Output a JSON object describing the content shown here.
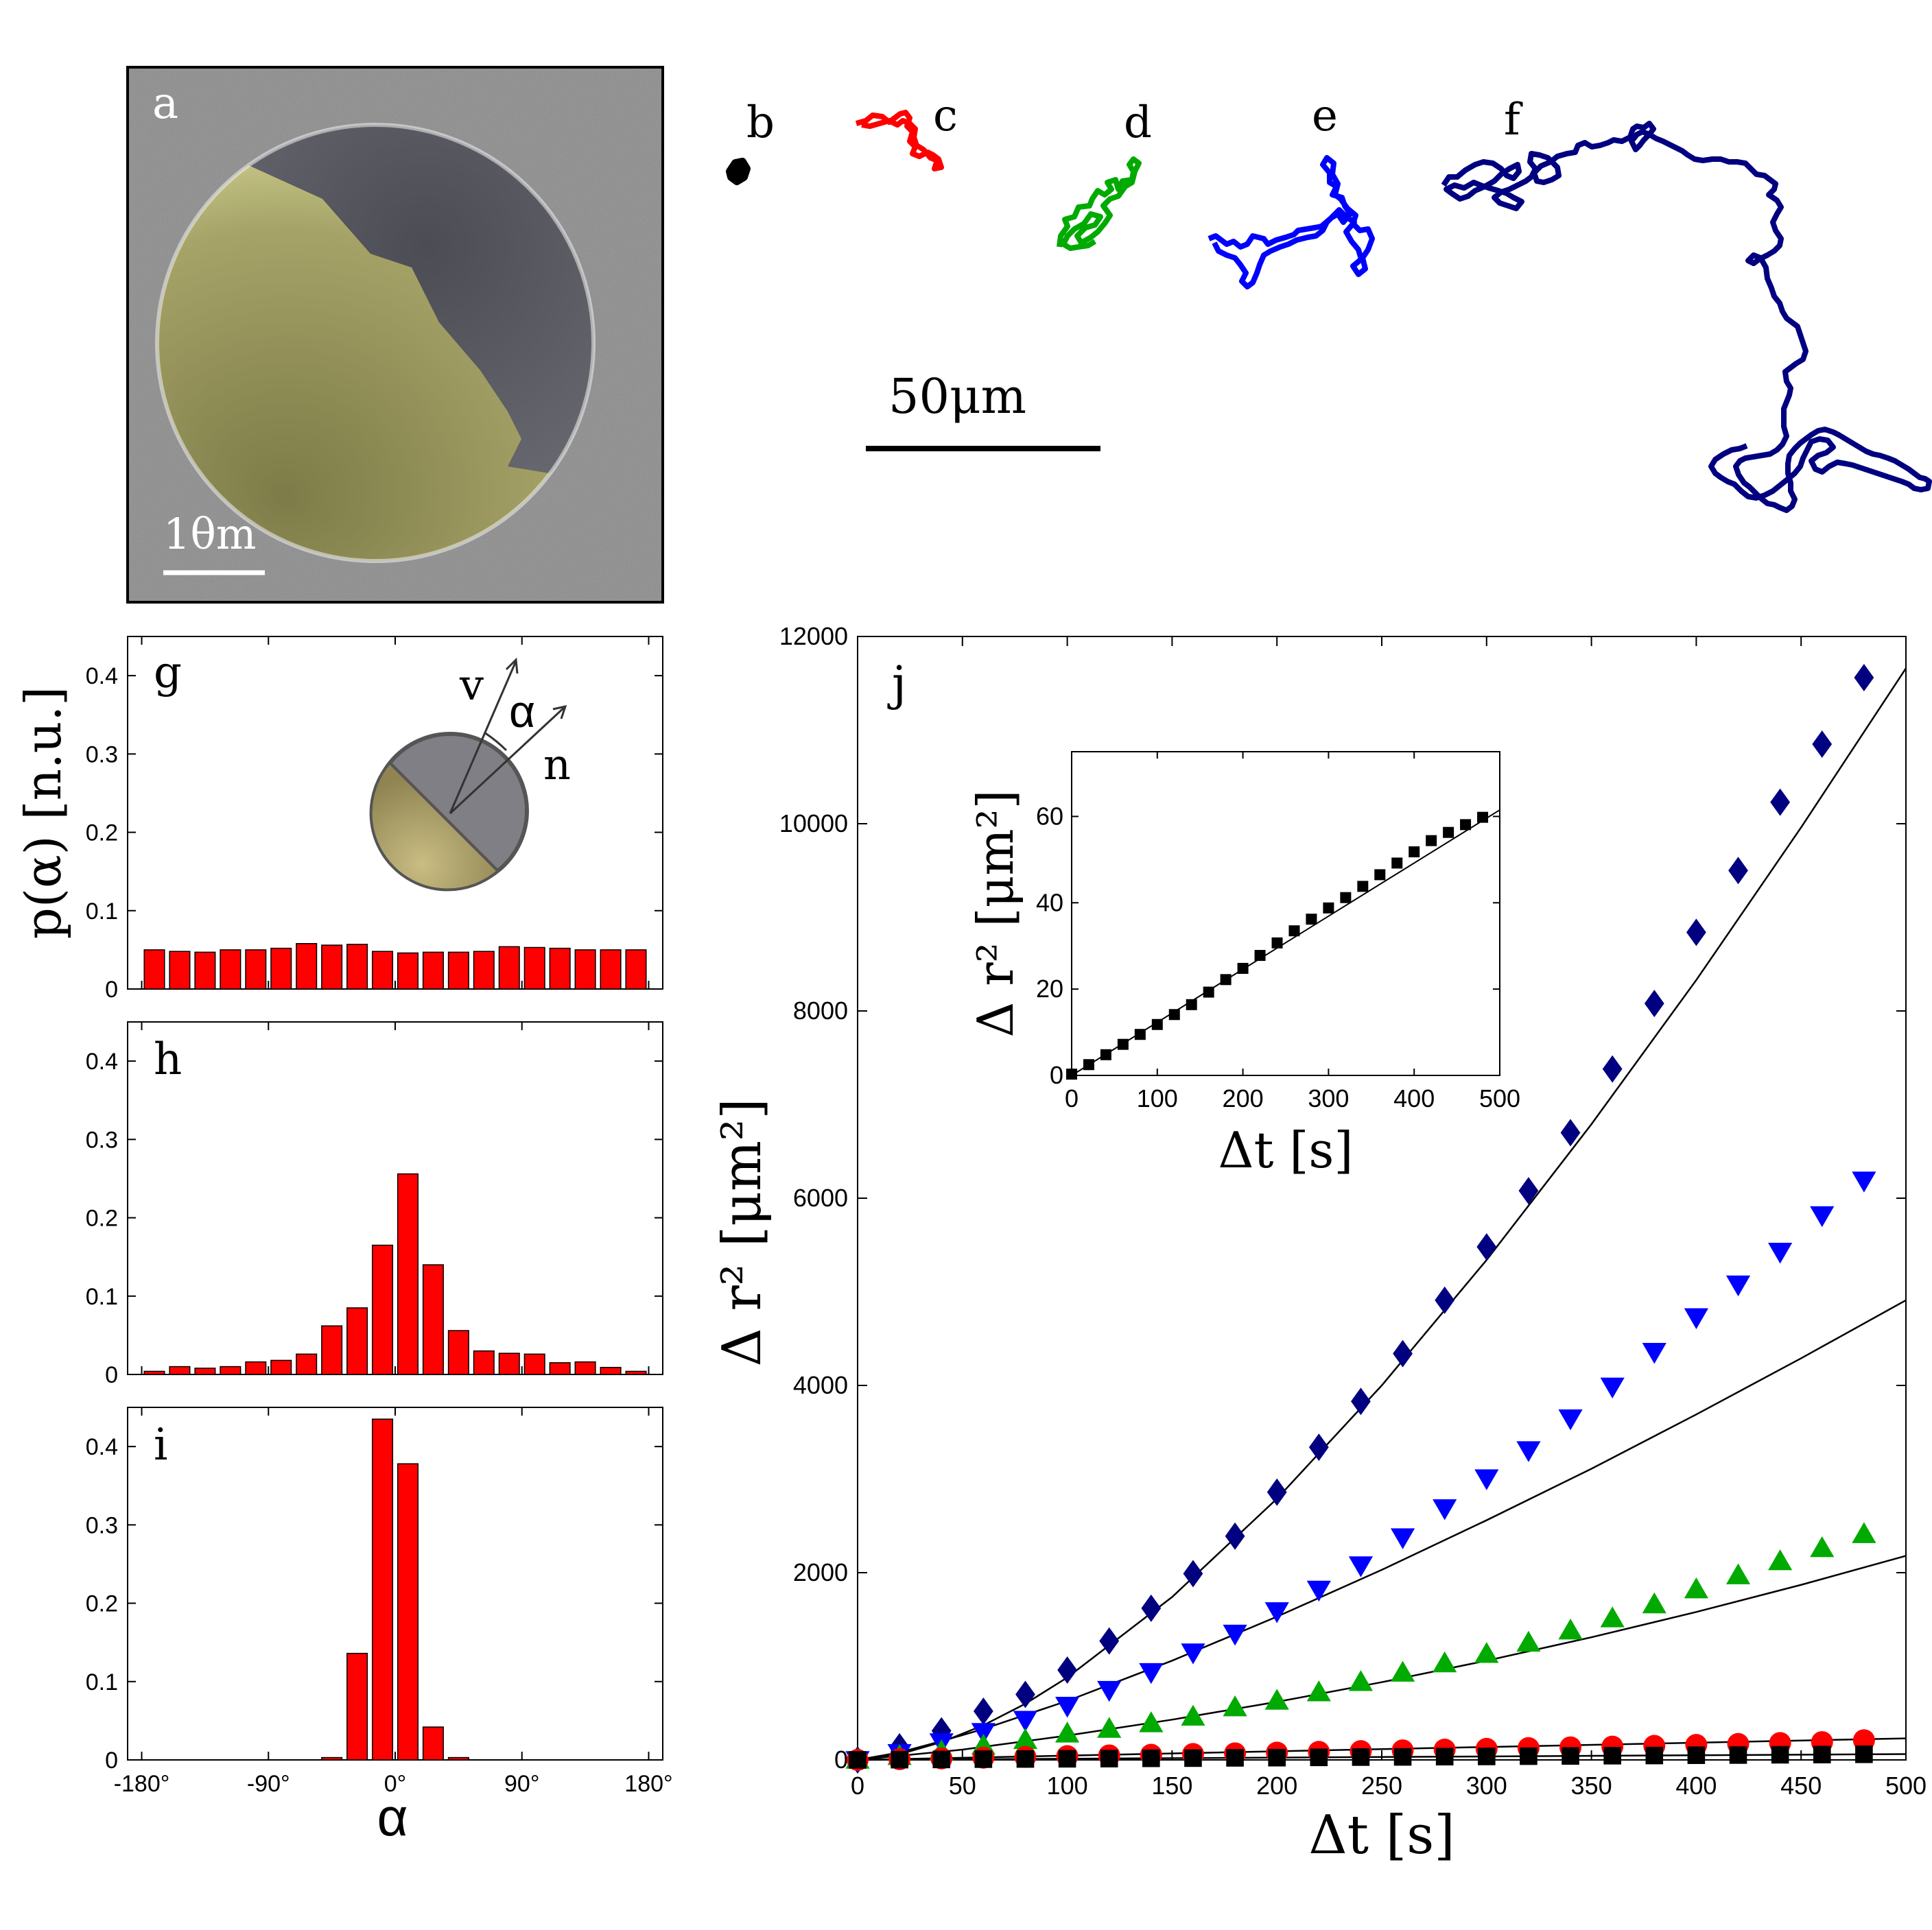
{
  "labels": {
    "a": "a",
    "b": "b",
    "c": "c",
    "d": "d",
    "e": "e",
    "f": "f",
    "g": "g",
    "h": "h",
    "i": "i",
    "j": "j"
  },
  "sem": {
    "scale_label": "1θm",
    "colors": {
      "background": "#8a8a8a",
      "cap": "#c9c98a",
      "uncoated": "#6d6d74"
    }
  },
  "trajectories": {
    "scale_label": "50μm",
    "colors": {
      "b": "#000000",
      "c": "#ff0000",
      "d": "#00aa00",
      "e": "#0000ff",
      "f": "#000080"
    }
  },
  "histograms": {
    "ylabel": "p(α) [n.u.]",
    "xlabel": "α",
    "bar_color": "#ff0000",
    "yticks": [
      "0",
      "0.1",
      "0.2",
      "0.3",
      "0.4"
    ],
    "xticks": [
      "-180°",
      "-90°",
      "0°",
      "90°",
      "180°"
    ],
    "inset": {
      "v": "v",
      "alpha": "α",
      "n": "n"
    }
  },
  "chart_data": [
    {
      "type": "bar",
      "panel": "g",
      "ylim": [
        0,
        0.45
      ],
      "xlim": [
        -190,
        190
      ],
      "bin_centers": [
        -171,
        -153,
        -135,
        -117,
        -99,
        -81,
        -63,
        -45,
        -27,
        -9,
        9,
        27,
        45,
        63,
        81,
        99,
        117,
        135,
        153,
        171
      ],
      "values": [
        0.05,
        0.048,
        0.047,
        0.05,
        0.05,
        0.052,
        0.058,
        0.056,
        0.057,
        0.048,
        0.046,
        0.047,
        0.047,
        0.048,
        0.054,
        0.053,
        0.052,
        0.05,
        0.05,
        0.05
      ]
    },
    {
      "type": "bar",
      "panel": "h",
      "ylim": [
        0,
        0.45
      ],
      "xlim": [
        -190,
        190
      ],
      "bin_centers": [
        -171,
        -153,
        -135,
        -117,
        -99,
        -81,
        -63,
        -45,
        -27,
        -9,
        9,
        27,
        45,
        63,
        81,
        99,
        117,
        135,
        153,
        171
      ],
      "values": [
        0.004,
        0.01,
        0.008,
        0.01,
        0.016,
        0.018,
        0.026,
        0.062,
        0.085,
        0.165,
        0.256,
        0.14,
        0.056,
        0.03,
        0.027,
        0.026,
        0.015,
        0.016,
        0.009,
        0.004
      ]
    },
    {
      "type": "bar",
      "panel": "i",
      "ylim": [
        0,
        0.45
      ],
      "xlim": [
        -190,
        190
      ],
      "bin_centers": [
        -171,
        -153,
        -135,
        -117,
        -99,
        -81,
        -63,
        -45,
        -27,
        -9,
        9,
        27,
        45,
        63,
        81,
        99,
        117,
        135,
        153,
        171
      ],
      "values": [
        0,
        0,
        0,
        0,
        0,
        0,
        0,
        0.003,
        0.136,
        0.435,
        0.378,
        0.042,
        0.003,
        0,
        0,
        0,
        0,
        0,
        0,
        0
      ]
    },
    {
      "type": "scatter",
      "panel": "j",
      "xlabel": "Δt  [s]",
      "ylabel": "Δ r² [μm²]",
      "xlim": [
        0,
        500
      ],
      "ylim": [
        0,
        12000
      ],
      "xticks": [
        "0",
        "50",
        "100",
        "150",
        "200",
        "250",
        "300",
        "350",
        "400",
        "450",
        "500"
      ],
      "yticks": [
        "0",
        "2000",
        "4000",
        "6000",
        "8000",
        "10000",
        "12000"
      ],
      "x": [
        0,
        20,
        40,
        60,
        80,
        100,
        120,
        140,
        160,
        180,
        200,
        220,
        240,
        260,
        280,
        300,
        320,
        340,
        360,
        380,
        400,
        420,
        440,
        460,
        480
      ],
      "series": [
        {
          "marker": "diamond",
          "color": "#000080",
          "values": [
            0,
            140,
            310,
            520,
            700,
            960,
            1270,
            1620,
            1990,
            2390,
            2860,
            3340,
            3830,
            4340,
            4910,
            5480,
            6080,
            6700,
            7380,
            8080,
            8840,
            9500,
            10230,
            10850,
            11560
          ]
        },
        {
          "marker": "triangle-down",
          "color": "#0000ff",
          "values": [
            0,
            75,
            190,
            300,
            430,
            580,
            750,
            940,
            1150,
            1350,
            1590,
            1820,
            2080,
            2380,
            2690,
            3010,
            3310,
            3650,
            3990,
            4360,
            4730,
            5080,
            5430,
            5820,
            6190
          ]
        },
        {
          "marker": "triangle-up",
          "color": "#00aa00",
          "values": [
            0,
            40,
            90,
            150,
            210,
            280,
            330,
            390,
            460,
            560,
            630,
            720,
            830,
            930,
            1030,
            1130,
            1250,
            1380,
            1510,
            1660,
            1820,
            1970,
            2120,
            2260,
            2410
          ]
        },
        {
          "marker": "circle",
          "color": "#ff0000",
          "values": [
            0,
            8,
            16,
            24,
            32,
            40,
            48,
            55,
            63,
            70,
            78,
            86,
            94,
            102,
            110,
            118,
            126,
            134,
            142,
            150,
            160,
            170,
            180,
            190,
            210
          ]
        },
        {
          "marker": "square",
          "color": "#000000",
          "values": [
            0,
            3,
            5,
            8,
            10,
            12,
            14,
            17,
            19,
            22,
            24,
            27,
            30,
            32,
            35,
            37,
            40,
            42,
            45,
            47,
            50,
            52,
            55,
            57,
            60
          ]
        }
      ],
      "fits": [
        {
          "x": [
            0,
            20,
            40,
            60,
            80,
            100,
            150,
            200,
            250,
            300,
            350,
            400,
            450,
            500
          ],
          "y": [
            0,
            60,
            190,
            370,
            600,
            880,
            1740,
            2790,
            4000,
            5340,
            6790,
            8330,
            9960,
            11660
          ]
        },
        {
          "x": [
            0,
            20,
            40,
            60,
            80,
            100,
            150,
            200,
            250,
            300,
            350,
            400,
            450,
            500
          ],
          "y": [
            0,
            80,
            200,
            330,
            480,
            630,
            1060,
            1530,
            2030,
            2560,
            3110,
            3690,
            4290,
            4910
          ]
        },
        {
          "x": [
            0,
            50,
            100,
            150,
            200,
            250,
            300,
            350,
            400,
            450,
            500
          ],
          "y": [
            0,
            110,
            260,
            430,
            620,
            830,
            1060,
            1310,
            1580,
            1870,
            2180
          ]
        },
        {
          "x": [
            0,
            500
          ],
          "y": [
            0,
            230
          ]
        },
        {
          "x": [
            0,
            500
          ],
          "y": [
            0,
            62
          ]
        }
      ],
      "inset": {
        "xlabel": "Δt  [s]",
        "ylabel": "Δ r² [μm²]",
        "xlim": [
          0,
          500
        ],
        "ylim": [
          0,
          75
        ],
        "xticks": [
          "0",
          "100",
          "200",
          "300",
          "400",
          "500"
        ],
        "yticks": [
          "0",
          "20",
          "40",
          "60"
        ],
        "x": [
          0,
          20,
          40,
          60,
          80,
          100,
          120,
          140,
          160,
          180,
          200,
          220,
          240,
          260,
          280,
          300,
          320,
          340,
          360,
          380,
          400,
          420,
          440,
          460,
          480
        ],
        "values": [
          0.3,
          2.5,
          4.8,
          7.2,
          9.5,
          11.8,
          14.1,
          16.4,
          19.3,
          22.2,
          24.8,
          27.8,
          30.7,
          33.5,
          36.2,
          38.8,
          41.2,
          43.8,
          46.5,
          49.2,
          51.8,
          54.4,
          56.3,
          58.1,
          59.8
        ],
        "fit": {
          "x": [
            0,
            500
          ],
          "y": [
            0,
            61.5
          ]
        }
      }
    }
  ]
}
